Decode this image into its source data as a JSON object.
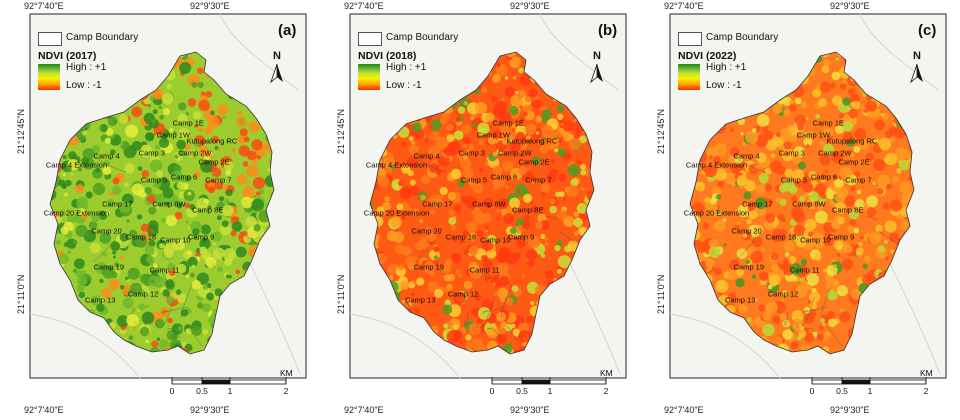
{
  "legend": {
    "boundary_label": "Camp Boundary",
    "high_label": "High : +1",
    "low_label": "Low : -1"
  },
  "north_label": "N",
  "scale": {
    "ticks": [
      "0",
      "0.5",
      "1",
      "2"
    ],
    "unit": "KM"
  },
  "coords": {
    "top_left": "92°7'40\"E",
    "top_right": "92°9'30\"E",
    "left_upper": "21°12'45\"N",
    "left_lower": "21°11'0\"N"
  },
  "colors": {
    "high": "#1a8a1a",
    "low": "#ff2a00",
    "boundary": "#4a4a4a",
    "frame": "#222222"
  },
  "panels": [
    {
      "id": "a",
      "label": "(a)",
      "ndvi_title": "NDVI (2017)",
      "dominant": "green"
    },
    {
      "id": "b",
      "label": "(b)",
      "ndvi_title": "NDVI (2018)",
      "dominant": "red"
    },
    {
      "id": "c",
      "label": "(c)",
      "ndvi_title": "NDVI (2022)",
      "dominant": "orange"
    }
  ],
  "camps": [
    {
      "name": "Camp 1E",
      "lon": 0.62,
      "lat": 0.77
    },
    {
      "name": "Camp 1W",
      "lon": 0.55,
      "lat": 0.73
    },
    {
      "name": "Kutupalong RC",
      "lon": 0.73,
      "lat": 0.71
    },
    {
      "name": "Camp 2W",
      "lon": 0.65,
      "lat": 0.67
    },
    {
      "name": "Camp 2E",
      "lon": 0.74,
      "lat": 0.64
    },
    {
      "name": "Camp 3",
      "lon": 0.45,
      "lat": 0.67
    },
    {
      "name": "Camp 4",
      "lon": 0.24,
      "lat": 0.66
    },
    {
      "name": "Camp 4 Extension",
      "lon": 0.1,
      "lat": 0.63
    },
    {
      "name": "Camp 5",
      "lon": 0.46,
      "lat": 0.58
    },
    {
      "name": "Camp 6",
      "lon": 0.6,
      "lat": 0.59
    },
    {
      "name": "Camp 7",
      "lon": 0.76,
      "lat": 0.58
    },
    {
      "name": "Camp 17",
      "lon": 0.29,
      "lat": 0.5
    },
    {
      "name": "Camp 8W",
      "lon": 0.53,
      "lat": 0.5
    },
    {
      "name": "Camp 8E",
      "lon": 0.71,
      "lat": 0.48
    },
    {
      "name": "Camp 20 Extension",
      "lon": 0.1,
      "lat": 0.47
    },
    {
      "name": "Camp 20",
      "lon": 0.24,
      "lat": 0.41
    },
    {
      "name": "Camp 18",
      "lon": 0.4,
      "lat": 0.39
    },
    {
      "name": "Camp 10",
      "lon": 0.56,
      "lat": 0.38
    },
    {
      "name": "Camp 9",
      "lon": 0.68,
      "lat": 0.39
    },
    {
      "name": "Camp 19",
      "lon": 0.25,
      "lat": 0.29
    },
    {
      "name": "Camp 11",
      "lon": 0.51,
      "lat": 0.28
    },
    {
      "name": "Camp 12",
      "lon": 0.41,
      "lat": 0.2
    },
    {
      "name": "Camp 13",
      "lon": 0.21,
      "lat": 0.18
    }
  ]
}
